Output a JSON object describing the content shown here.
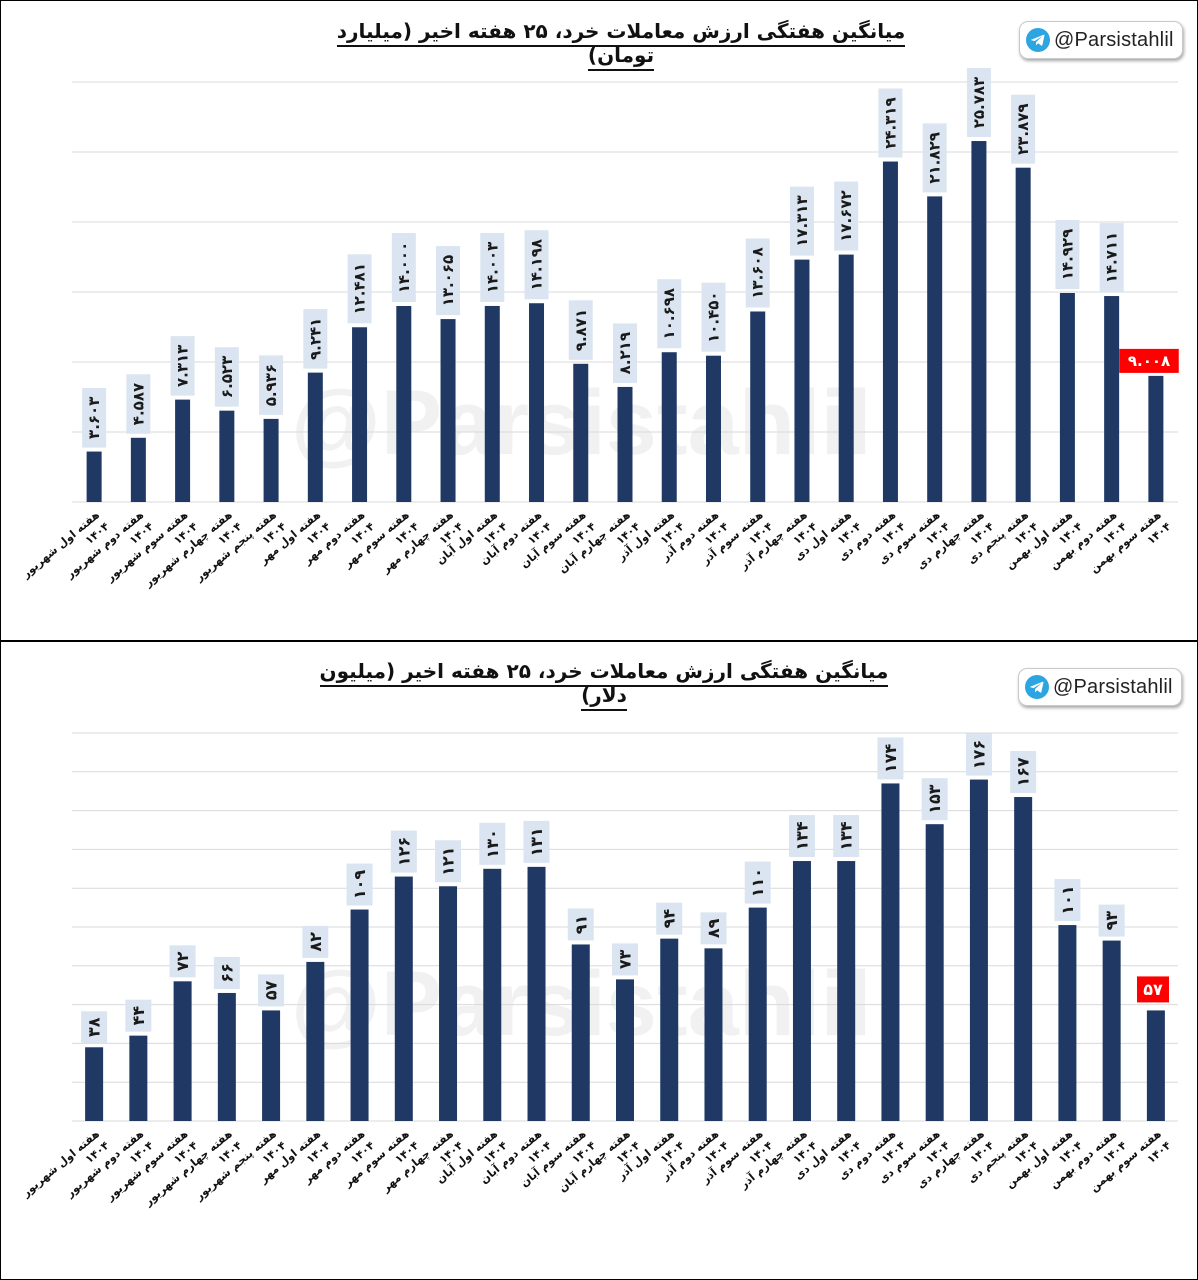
{
  "chart_data": [
    {
      "type": "bar",
      "title": "میانگین هفتگی ارزش معاملات خرد، ۲۵ هفته اخیر (میلیارد تومان)",
      "badge": "@Parsistahlil",
      "watermark": "@Parsistahlil",
      "categories": [
        "هفته اول شهریور ۱۴۰۴",
        "هفته دوم شهریور ۱۴۰۴",
        "هفته سوم شهریور ۱۴۰۴",
        "هفته چهارم شهریور ۱۴۰۴",
        "هفته پنجم شهریور ۱۴۰۴",
        "هفته اول مهر ۱۴۰۴",
        "هفته دوم مهر ۱۴۰۴",
        "هفته سوم مهر ۱۴۰۴",
        "هفته چهارم مهر ۱۴۰۴",
        "هفته اول آبان ۱۴۰۴",
        "هفته دوم آبان ۱۴۰۴",
        "هفته سوم آبان ۱۴۰۴",
        "هفته چهارم آبان ۱۴۰۴",
        "هفته اول آذر ۱۴۰۴",
        "هفته دوم آذر ۱۴۰۴",
        "هفته سوم آذر ۱۴۰۴",
        "هفته چهارم آذر ۱۴۰۴",
        "هفته اول دی ۱۴۰۴",
        "هفته دوم دی ۱۴۰۴",
        "هفته سوم دی ۱۴۰۴",
        "هفته چهارم دی ۱۴۰۴",
        "هفته پنجم دی ۱۴۰۴",
        "هفته اول بهمن ۱۴۰۴",
        "هفته دوم بهمن ۱۴۰۴",
        "هفته سوم بهمن ۱۴۰۴"
      ],
      "values": [
        3.603,
        4.587,
        7.313,
        6.523,
        5.936,
        9.241,
        12.481,
        14.0,
        13.065,
        14.003,
        14.198,
        9.871,
        8.219,
        10.698,
        10.45,
        13.608,
        17.313,
        17.672,
        24.319,
        21.829,
        25.783,
        23.879,
        14.929,
        14.711,
        9.008
      ],
      "labels": [
        "۳.۶۰۳",
        "۴.۵۸۷",
        "۷.۳۱۳",
        "۶.۵۲۳",
        "۵.۹۳۶",
        "۹.۲۴۱",
        "۱۲.۴۸۱",
        "۱۴.۰۰۰",
        "۱۳.۰۶۵",
        "۱۴.۰۰۳",
        "۱۴.۱۹۸",
        "۹.۸۷۱",
        "۸.۲۱۹",
        "۱۰.۶۹۸",
        "۱۰.۴۵۰",
        "۱۳.۶۰۸",
        "۱۷.۳۱۳",
        "۱۷.۶۷۲",
        "۲۴.۳۱۹",
        "۲۱.۸۲۹",
        "۲۵.۷۸۳",
        "۲۳.۸۷۹",
        "۱۴.۹۲۹",
        "۱۴.۷۱۱",
        "۹.۰۰۸"
      ],
      "ylim": [
        0,
        30
      ],
      "grid_step": 5,
      "grid": true,
      "bar_color": "#1f3864",
      "label_bg": "#dae5f1",
      "highlight_bg": "#ff0000",
      "highlight_index": 24
    },
    {
      "type": "bar",
      "title": "میانگین هفتگی ارزش معاملات خرد، ۲۵ هفته اخیر (میلیون دلار)",
      "badge": "@Parsistahlil",
      "watermark": "@Parsistahlil",
      "categories": [
        "هفته اول شهریور ۱۴۰۴",
        "هفته دوم شهریور ۱۴۰۴",
        "هفته سوم شهریور ۱۴۰۴",
        "هفته چهارم شهریور ۱۴۰۴",
        "هفته پنجم شهریور ۱۴۰۴",
        "هفته اول مهر ۱۴۰۴",
        "هفته دوم مهر ۱۴۰۴",
        "هفته سوم مهر ۱۴۰۴",
        "هفته چهارم مهر ۱۴۰۴",
        "هفته اول آبان ۱۴۰۴",
        "هفته دوم آبان ۱۴۰۴",
        "هفته سوم آبان ۱۴۰۴",
        "هفته چهارم آبان ۱۴۰۴",
        "هفته اول آذر ۱۴۰۴",
        "هفته دوم آذر ۱۴۰۴",
        "هفته سوم آذر ۱۴۰۴",
        "هفته چهارم آذر ۱۴۰۴",
        "هفته اول دی ۱۴۰۴",
        "هفته دوم دی ۱۴۰۴",
        "هفته سوم دی ۱۴۰۴",
        "هفته چهارم دی ۱۴۰۴",
        "هفته پنجم دی ۱۴۰۴",
        "هفته اول بهمن ۱۴۰۴",
        "هفته دوم بهمن ۱۴۰۴",
        "هفته سوم بهمن ۱۴۰۴"
      ],
      "values": [
        38,
        44,
        72,
        66,
        57,
        82,
        109,
        126,
        121,
        130,
        131,
        91,
        73,
        94,
        89,
        110,
        134,
        134,
        174,
        153,
        176,
        167,
        101,
        93,
        57
      ],
      "labels": [
        "۳۸",
        "۴۴",
        "۷۲",
        "۶۶",
        "۵۷",
        "۸۲",
        "۱۰۹",
        "۱۲۶",
        "۱۲۱",
        "۱۳۰",
        "۱۳۱",
        "۹۱",
        "۷۳",
        "۹۴",
        "۸۹",
        "۱۱۰",
        "۱۳۴",
        "۱۳۴",
        "۱۷۴",
        "۱۵۳",
        "۱۷۶",
        "۱۶۷",
        "۱۰۱",
        "۹۳",
        "۵۷"
      ],
      "ylim": [
        0,
        200
      ],
      "grid_step": 20,
      "grid": true,
      "bar_color": "#1f3864",
      "label_bg": "#dae5f1",
      "highlight_bg": "#ff0000",
      "highlight_index": 24
    }
  ]
}
